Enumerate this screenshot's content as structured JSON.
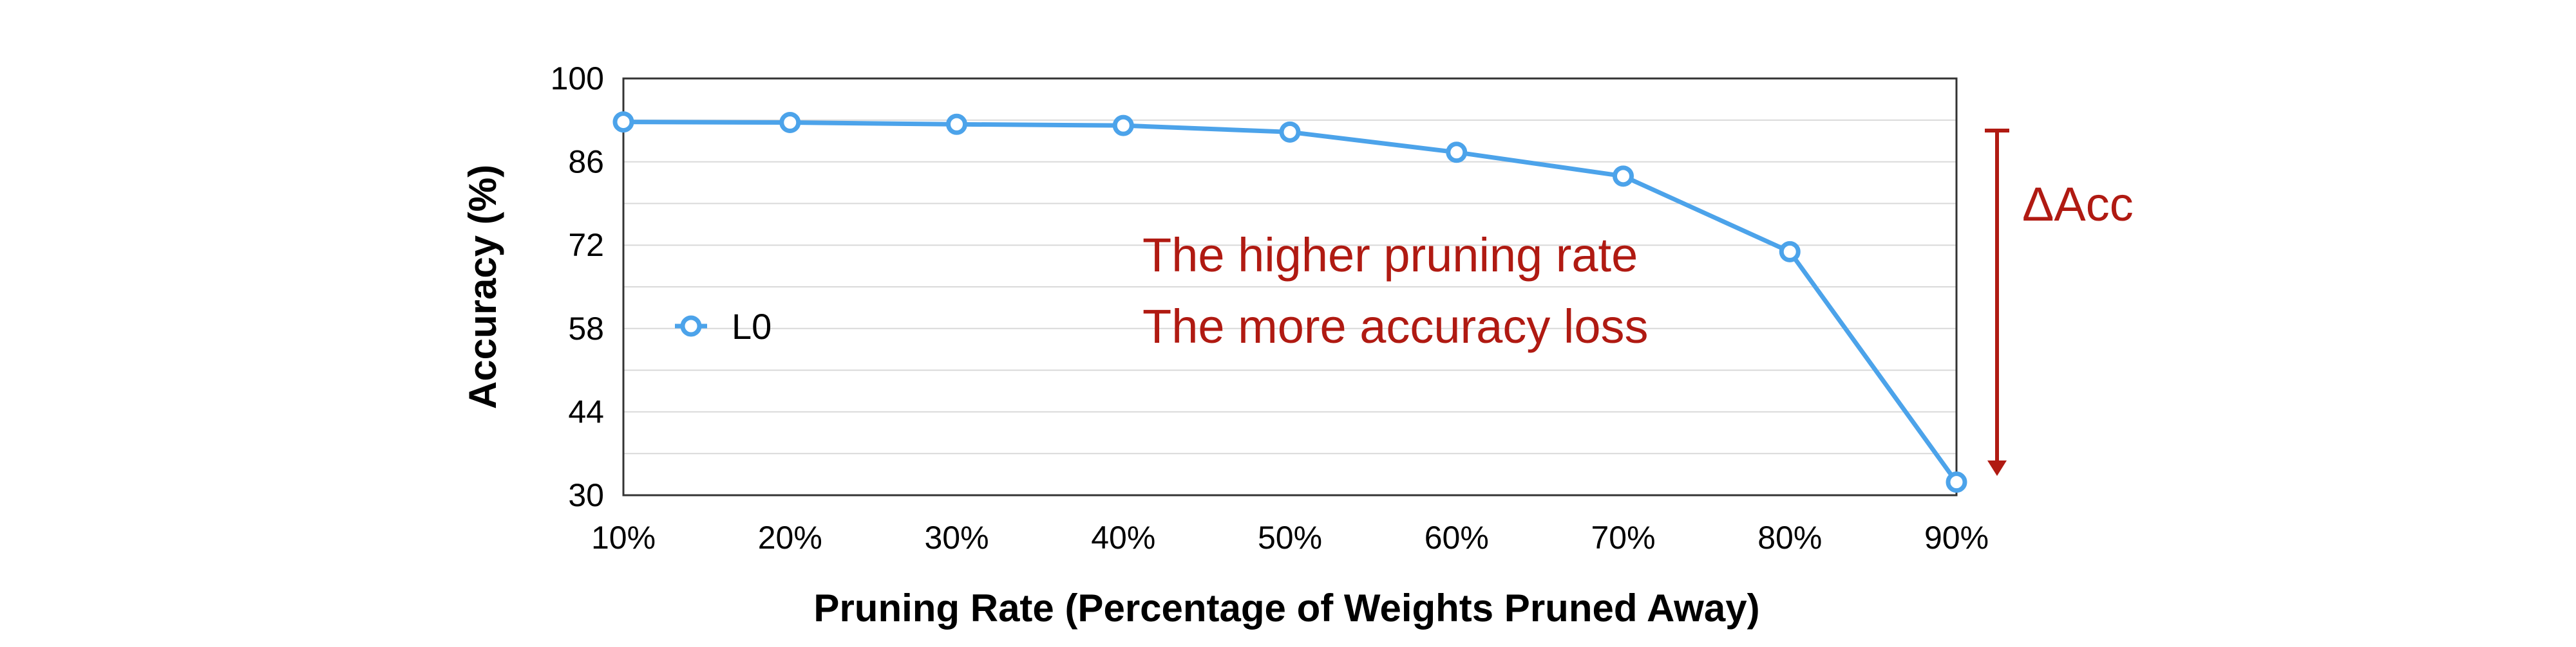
{
  "chart_data": {
    "type": "line",
    "xlabel": "Pruning Rate (Percentage of Weights Pruned Away)",
    "ylabel": "Accuracy (%)",
    "categories": [
      "10%",
      "20%",
      "30%",
      "40%",
      "50%",
      "60%",
      "70%",
      "80%",
      "90%"
    ],
    "series": [
      {
        "name": "L0",
        "values": [
          92.7,
          92.6,
          92.3,
          92.1,
          91.0,
          87.6,
          83.6,
          70.9,
          32.2
        ],
        "color": "#4ca3ea"
      }
    ],
    "ylim": [
      30,
      100
    ],
    "yticks": [
      30,
      44,
      58,
      72,
      86,
      100
    ],
    "grid": true,
    "legend": "left",
    "annotations": {
      "line1": "The higher pruning rate",
      "line2": "The more accuracy loss",
      "delta": "ΔAcc",
      "color": "#b01a12"
    }
  }
}
